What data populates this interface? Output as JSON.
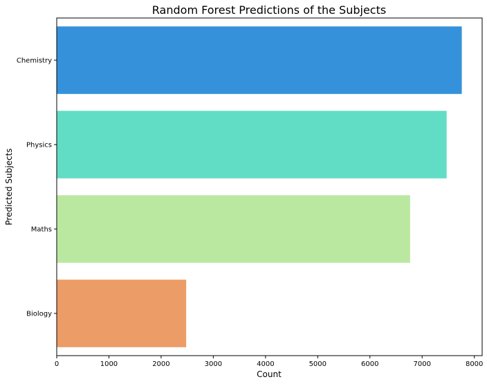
{
  "chart_data": {
    "type": "bar",
    "orientation": "horizontal",
    "title": "Random Forest Predictions of the Subjects",
    "xlabel": "Count",
    "ylabel": "Predicted Subjects",
    "categories": [
      "Chemistry",
      "Physics",
      "Maths",
      "Biology"
    ],
    "values": [
      7760,
      7470,
      6770,
      2480
    ],
    "colors": [
      "#3592da",
      "#62ddc5",
      "#bbe8a0",
      "#ec9c66"
    ],
    "xlim": [
      0,
      8150
    ],
    "xticks": [
      0,
      1000,
      2000,
      3000,
      4000,
      5000,
      6000,
      7000,
      8000
    ],
    "grid": false,
    "legend": "none"
  }
}
